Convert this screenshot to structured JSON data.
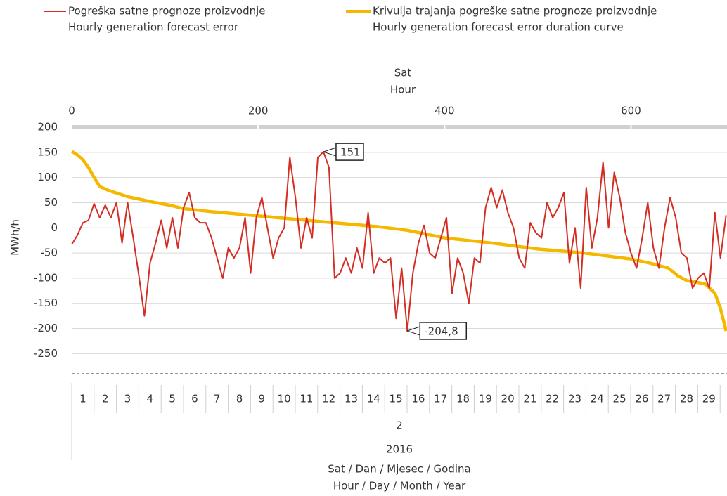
{
  "chart_data": {
    "type": "line",
    "x2_label": [
      "Sat",
      "Hour"
    ],
    "x_label": [
      "Sat / Dan / Mjesec / Godina",
      "Hour / Day / Month / Year"
    ],
    "y_label": "MWh/h",
    "xlim": [
      0,
      703
    ],
    "xticks": [
      0,
      200,
      400,
      600
    ],
    "ylim": [
      -290,
      200
    ],
    "yticks": [
      200,
      150,
      100,
      50,
      0,
      -50,
      -100,
      -150,
      -200,
      -250
    ],
    "grid": true,
    "categories": [
      "1",
      "2",
      "3",
      "4",
      "5",
      "6",
      "7",
      "8",
      "9",
      "10",
      "11",
      "12",
      "13",
      "14",
      "15",
      "16",
      "17",
      "18",
      "19",
      "20",
      "21",
      "22",
      "23",
      "24",
      "25",
      "26",
      "27",
      "28",
      "29"
    ],
    "month": "2",
    "year": "2016",
    "series": [
      {
        "name": "Pogreška satne prognoze proizvodnje",
        "name_en": "Hourly generation forecast error",
        "color": "#d42e24",
        "x": [
          0,
          6,
          12,
          18,
          24,
          30,
          36,
          42,
          48,
          54,
          60,
          66,
          72,
          78,
          84,
          90,
          96,
          102,
          108,
          114,
          120,
          126,
          132,
          138,
          144,
          150,
          156,
          162,
          168,
          174,
          180,
          186,
          192,
          198,
          204,
          210,
          216,
          222,
          228,
          234,
          240,
          246,
          252,
          258,
          264,
          270,
          276,
          282,
          288,
          294,
          300,
          306,
          312,
          318,
          324,
          330,
          336,
          342,
          348,
          354,
          360,
          366,
          372,
          378,
          384,
          390,
          396,
          402,
          408,
          414,
          420,
          426,
          432,
          438,
          444,
          450,
          456,
          462,
          468,
          474,
          480,
          486,
          492,
          498,
          504,
          510,
          516,
          522,
          528,
          534,
          540,
          546,
          552,
          558,
          564,
          570,
          576,
          582,
          588,
          594,
          600,
          606,
          612,
          618,
          624,
          630,
          636,
          642,
          648,
          654,
          660,
          666,
          672,
          678,
          684,
          690,
          696,
          702
        ],
        "values": [
          -33,
          -15,
          10,
          15,
          48,
          20,
          45,
          20,
          50,
          -30,
          50,
          -20,
          -95,
          -175,
          -70,
          -30,
          15,
          -40,
          20,
          -40,
          40,
          70,
          20,
          10,
          10,
          -20,
          -60,
          -100,
          -40,
          -60,
          -40,
          20,
          -90,
          20,
          60,
          0,
          -60,
          -20,
          0,
          140,
          60,
          -40,
          20,
          -20,
          140,
          151,
          120,
          -100,
          -90,
          -60,
          -90,
          -40,
          -80,
          30,
          -90,
          -60,
          -70,
          -60,
          -180,
          -80,
          -204.8,
          -90,
          -30,
          5,
          -50,
          -60,
          -20,
          20,
          -130,
          -60,
          -90,
          -150,
          -60,
          -70,
          40,
          80,
          40,
          75,
          30,
          0,
          -60,
          -80,
          10,
          -10,
          -20,
          50,
          20,
          40,
          70,
          -70,
          0,
          -120,
          80,
          -40,
          20,
          130,
          0,
          110,
          60,
          -10,
          -50,
          -80,
          -20,
          50,
          -40,
          -80,
          0,
          60,
          20,
          -50,
          -60,
          -120,
          -100,
          -90,
          -120,
          30,
          -60,
          25
        ]
      },
      {
        "name": "Krivulja trajanja pogreške satne prognoze proizvodnje",
        "name_en": "Hourly generation forecast error duration curve",
        "color": "#f5b800",
        "x": [
          0,
          6,
          12,
          18,
          24,
          30,
          40,
          50,
          60,
          75,
          90,
          105,
          120,
          150,
          180,
          210,
          240,
          270,
          300,
          330,
          360,
          400,
          450,
          500,
          550,
          600,
          620,
          640,
          650,
          660,
          670,
          680,
          690,
          696,
          702
        ],
        "values": [
          152,
          145,
          135,
          120,
          100,
          82,
          74,
          68,
          62,
          56,
          50,
          45,
          38,
          32,
          27,
          22,
          17,
          12,
          7,
          2,
          -5,
          -20,
          -30,
          -42,
          -50,
          -62,
          -70,
          -80,
          -95,
          -105,
          -108,
          -112,
          -130,
          -160,
          -205
        ]
      }
    ],
    "annotations": [
      {
        "text": "151",
        "x": 270,
        "y": 151
      },
      {
        "text": "-204,8",
        "x": 360,
        "y": -204.8
      }
    ]
  }
}
